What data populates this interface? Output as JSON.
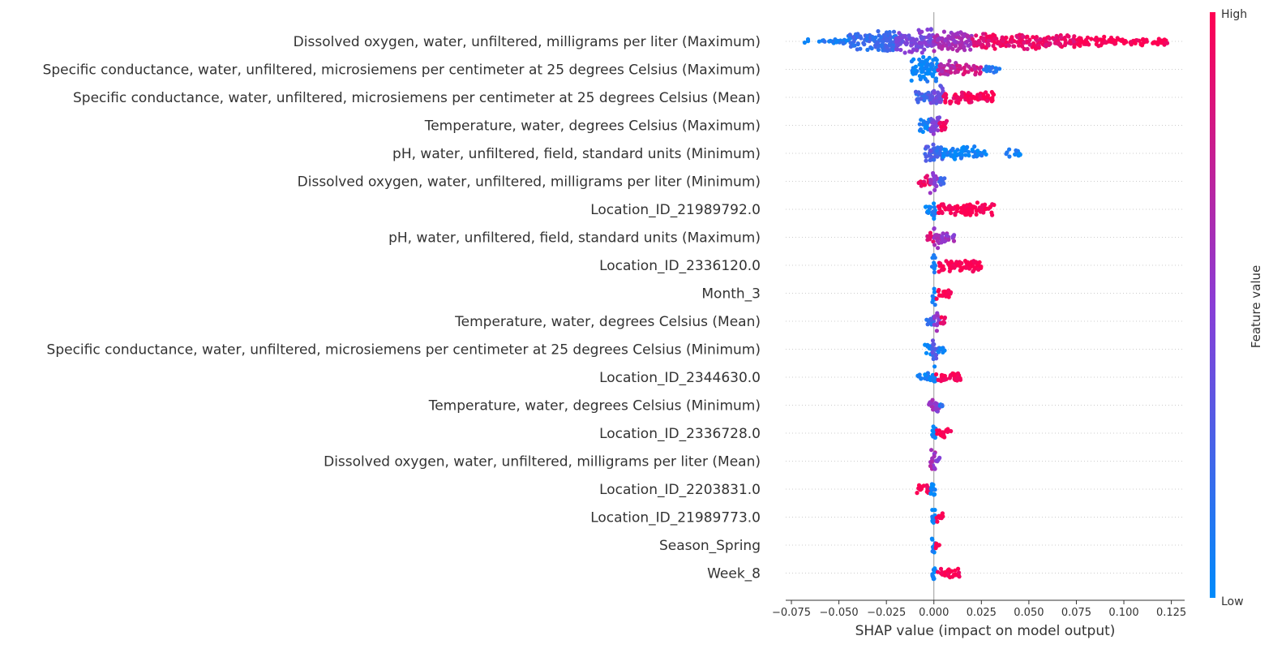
{
  "chart_data": {
    "type": "scatter",
    "subtype": "shap-beeswarm",
    "xlabel": "SHAP value (impact on model output)",
    "xlim": [
      -0.078,
      0.132
    ],
    "xticks": [
      "−0.075",
      "−0.050",
      "−0.025",
      "0.000",
      "0.025",
      "0.050",
      "0.075",
      "0.100",
      "0.125"
    ],
    "xtick_values": [
      -0.075,
      -0.05,
      -0.025,
      0,
      0.025,
      0.05,
      0.075,
      0.1,
      0.125
    ],
    "colorbar": {
      "label": "Feature value",
      "high": "High",
      "low": "Low",
      "high_color": "#ff0052",
      "low_color": "#008bfb"
    },
    "features": [
      {
        "name": "Dissolved oxygen, water, unfiltered, milligrams per liter (Maximum)",
        "clusters": [
          [
            -0.068,
            -0.045,
            0.1,
            0.03
          ],
          [
            -0.045,
            -0.02,
            0.2,
            0.9
          ],
          [
            -0.02,
            0,
            0.45,
            1.0
          ],
          [
            0,
            0.02,
            0.6,
            0.9
          ],
          [
            0.02,
            0.075,
            0.9,
            0.6
          ],
          [
            0.075,
            0.1,
            1.0,
            0.3
          ],
          [
            0.1,
            0.123,
            1.0,
            0.2
          ]
        ]
      },
      {
        "name": "Specific conductance, water, unfiltered, microsiemens per centimeter at 25 degrees Celsius (Maximum)",
        "clusters": [
          [
            -0.012,
            0.002,
            0.05,
            1.0
          ],
          [
            0.002,
            0.012,
            0.7,
            0.6
          ],
          [
            0.012,
            0.025,
            0.8,
            0.3
          ],
          [
            0.025,
            0.035,
            0.1,
            0.15
          ]
        ]
      },
      {
        "name": "Specific conductance, water, unfiltered, microsiemens per centimeter at 25 degrees Celsius (Mean)",
        "clusters": [
          [
            -0.01,
            -0.002,
            0.25,
            0.4
          ],
          [
            -0.002,
            0.005,
            0.4,
            0.9
          ],
          [
            0.005,
            0.02,
            0.95,
            0.5
          ],
          [
            0.02,
            0.032,
            1.0,
            0.35
          ]
        ]
      },
      {
        "name": "Temperature, water, degrees Celsius (Maximum)",
        "clusters": [
          [
            -0.008,
            -0.002,
            0.05,
            0.5
          ],
          [
            -0.002,
            0.003,
            0.45,
            0.8
          ],
          [
            0.003,
            0.008,
            0.95,
            0.4
          ]
        ]
      },
      {
        "name": "pH, water, unfiltered, field, standard units (Minimum)",
        "clusters": [
          [
            -0.005,
            0,
            0.3,
            0.7
          ],
          [
            0,
            0.005,
            0.2,
            0.9
          ],
          [
            0.005,
            0.022,
            0.05,
            0.45
          ],
          [
            0.022,
            0.028,
            0.05,
            0.2
          ],
          [
            0.038,
            0.046,
            0.05,
            0.2
          ]
        ]
      },
      {
        "name": "Dissolved oxygen, water, unfiltered, milligrams per liter (Minimum)",
        "clusters": [
          [
            -0.008,
            -0.002,
            0.95,
            0.4
          ],
          [
            -0.002,
            0.002,
            0.55,
            0.9
          ],
          [
            0.002,
            0.006,
            0.2,
            0.4
          ]
        ]
      },
      {
        "name": "Location_ID_21989792.0",
        "clusters": [
          [
            -0.005,
            -0.001,
            0.05,
            0.3
          ],
          [
            -0.001,
            0.001,
            0.05,
            1.0
          ],
          [
            0.002,
            0.032,
            1.0,
            0.45
          ]
        ]
      },
      {
        "name": "pH, water, unfiltered, field, standard units (Maximum)",
        "clusters": [
          [
            -0.004,
            0,
            0.9,
            0.4
          ],
          [
            0,
            0.004,
            0.6,
            0.9
          ],
          [
            0.004,
            0.011,
            0.55,
            0.35
          ]
        ]
      },
      {
        "name": "Location_ID_2336120.0",
        "clusters": [
          [
            -0.001,
            0.001,
            0.05,
            1.0
          ],
          [
            0.002,
            0.025,
            1.0,
            0.45
          ]
        ]
      },
      {
        "name": "Month_3",
        "clusters": [
          [
            -0.001,
            0.001,
            0.05,
            1.0
          ],
          [
            0.001,
            0.009,
            1.0,
            0.4
          ]
        ]
      },
      {
        "name": "Temperature, water, degrees Celsius (Mean)",
        "clusters": [
          [
            -0.004,
            0,
            0.2,
            0.5
          ],
          [
            0,
            0.003,
            0.55,
            0.9
          ],
          [
            0.003,
            0.006,
            0.95,
            0.3
          ]
        ]
      },
      {
        "name": "Specific conductance, water, unfiltered, microsiemens per centimeter at 25 degrees Celsius (Minimum)",
        "clusters": [
          [
            -0.005,
            -0.001,
            0.05,
            0.4
          ],
          [
            -0.001,
            0.002,
            0.3,
            1.0
          ],
          [
            0.002,
            0.006,
            0.1,
            0.3
          ]
        ]
      },
      {
        "name": "Location_ID_2344630.0",
        "clusters": [
          [
            -0.009,
            -0.001,
            0.05,
            0.25
          ],
          [
            -0.001,
            0.001,
            0.05,
            1.0
          ],
          [
            0.001,
            0.014,
            1.0,
            0.35
          ]
        ]
      },
      {
        "name": "Temperature, water, degrees Celsius (Minimum)",
        "clusters": [
          [
            -0.003,
            0,
            0.55,
            0.6
          ],
          [
            0,
            0.003,
            0.5,
            0.8
          ],
          [
            0.003,
            0.005,
            0.1,
            0.25
          ]
        ]
      },
      {
        "name": "Location_ID_2336728.0",
        "clusters": [
          [
            -0.001,
            0.001,
            0.05,
            1.0
          ],
          [
            0.001,
            0.009,
            1.0,
            0.35
          ]
        ]
      },
      {
        "name": "Dissolved oxygen, water, unfiltered, milligrams per liter (Mean)",
        "clusters": [
          [
            -0.002,
            0.001,
            0.6,
            0.9
          ],
          [
            0.001,
            0.003,
            0.5,
            0.4
          ]
        ]
      },
      {
        "name": "Location_ID_2203831.0",
        "clusters": [
          [
            -0.009,
            -0.002,
            1.0,
            0.4
          ],
          [
            -0.002,
            0.001,
            0.05,
            1.0
          ]
        ]
      },
      {
        "name": "Location_ID_21989773.0",
        "clusters": [
          [
            -0.001,
            0.001,
            0.05,
            1.0
          ],
          [
            0.001,
            0.005,
            1.0,
            0.3
          ]
        ]
      },
      {
        "name": "Season_Spring",
        "clusters": [
          [
            -0.001,
            0.001,
            0.05,
            1.0
          ],
          [
            0.001,
            0.003,
            1.0,
            0.3
          ]
        ]
      },
      {
        "name": "Week_8",
        "clusters": [
          [
            -0.001,
            0.001,
            0.05,
            1.0
          ],
          [
            0.002,
            0.014,
            1.0,
            0.35
          ]
        ]
      }
    ]
  }
}
